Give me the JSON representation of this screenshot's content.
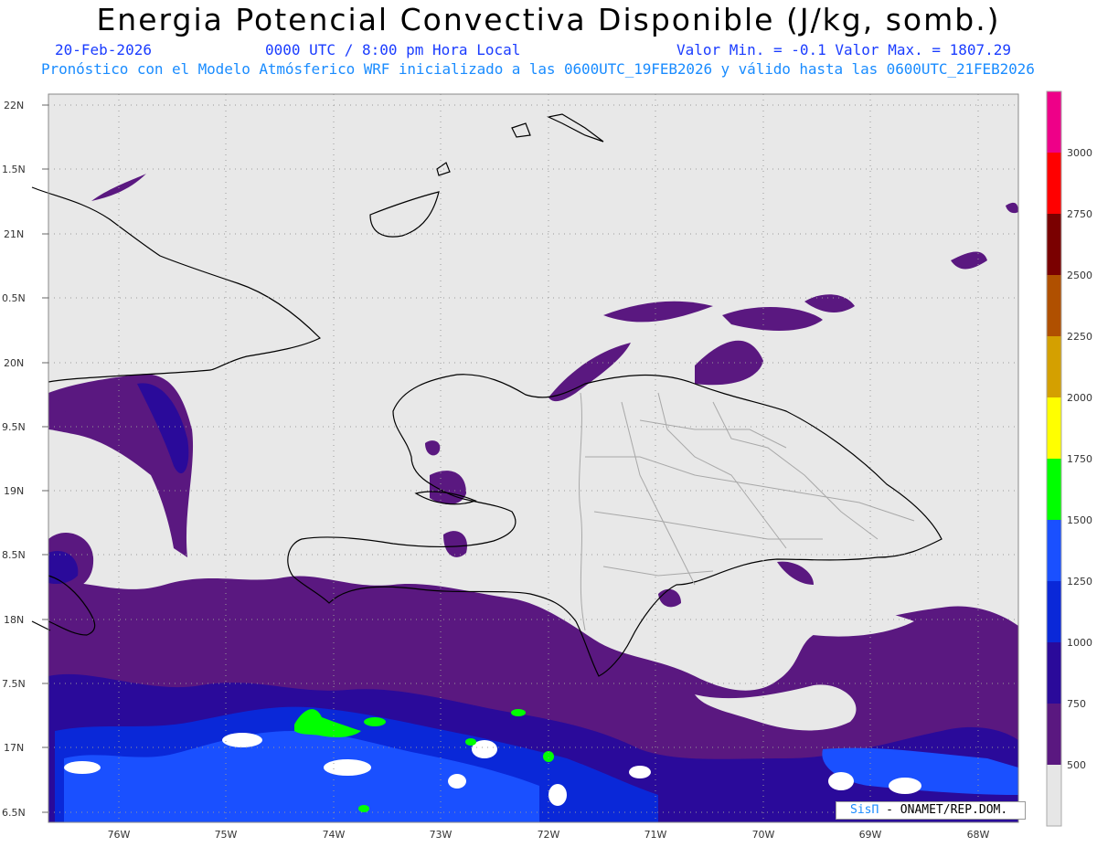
{
  "header": {
    "title": "Energia Potencial Convectiva Disponible (J/kg, somb.)",
    "date": "20-Feb-2026",
    "time": "0000 UTC / 8:00 pm Hora Local",
    "range": "Valor Min. = -0.1  Valor Max. = 1807.29",
    "subtitle": "Pronóstico con el Modelo Atmósferico WRF inicializado a las 0600UTC_19FEB2026 y válido hasta las  0600UTC_21FEB2026"
  },
  "axes": {
    "lat_labels": [
      "22N",
      "1.5N",
      "21N",
      "0.5N",
      "20N",
      "9.5N",
      "19N",
      "8.5N",
      "18N",
      "7.5N",
      "17N",
      "6.5N"
    ],
    "lon_labels": [
      "76W",
      "75W",
      "74W",
      "73W",
      "72W",
      "71W",
      "70W",
      "69W",
      "68W"
    ]
  },
  "colorbar": {
    "labels": [
      "3000",
      "2750",
      "2500",
      "2250",
      "2000",
      "1750",
      "1500",
      "1250",
      "1000",
      "750",
      "500"
    ],
    "colors": [
      "#ee0088",
      "#ff0000",
      "#7a0000",
      "#b05000",
      "#d4a000",
      "#ffff00",
      "#00ff00",
      "#1a50ff",
      "#0a28d8",
      "#2a0a9a",
      "#5a1880",
      "#e6e6e6"
    ]
  },
  "credit": {
    "logo": "SisΠ",
    "text": " - ONAMET/REP.DOM."
  }
}
